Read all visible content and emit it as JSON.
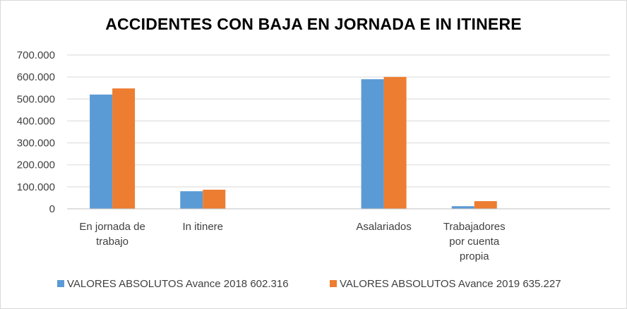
{
  "chart_data": {
    "type": "bar",
    "title": "ACCIDENTES CON BAJA EN JORNADA E IN ITINERE",
    "categories": [
      [
        "En jornada de",
        "trabajo"
      ],
      [
        "In itinere"
      ],
      [],
      [
        "Asalariados"
      ],
      [
        "Trabajadores",
        "por cuenta",
        "propia"
      ],
      []
    ],
    "series": [
      {
        "name": "VALORES ABSOLUTOS Avance 2018 602.316",
        "color": "#5b9bd5",
        "values": [
          520000,
          80000,
          null,
          590000,
          12000,
          null
        ]
      },
      {
        "name": "VALORES ABSOLUTOS Avance 2019 635.227",
        "color": "#ed7d31",
        "values": [
          548000,
          87000,
          null,
          600000,
          35000,
          null
        ]
      }
    ],
    "ylim": [
      0,
      700000
    ],
    "yticks": [
      0,
      100000,
      200000,
      300000,
      400000,
      500000,
      600000,
      700000
    ],
    "ytick_labels": [
      "0",
      "100.000",
      "200.000",
      "300.000",
      "400.000",
      "500.000",
      "600.000",
      "700.000"
    ],
    "grid": true,
    "legend_position": "bottom",
    "gridline_color": "#d9d9d9",
    "axis_color": "#bfbfbf"
  }
}
